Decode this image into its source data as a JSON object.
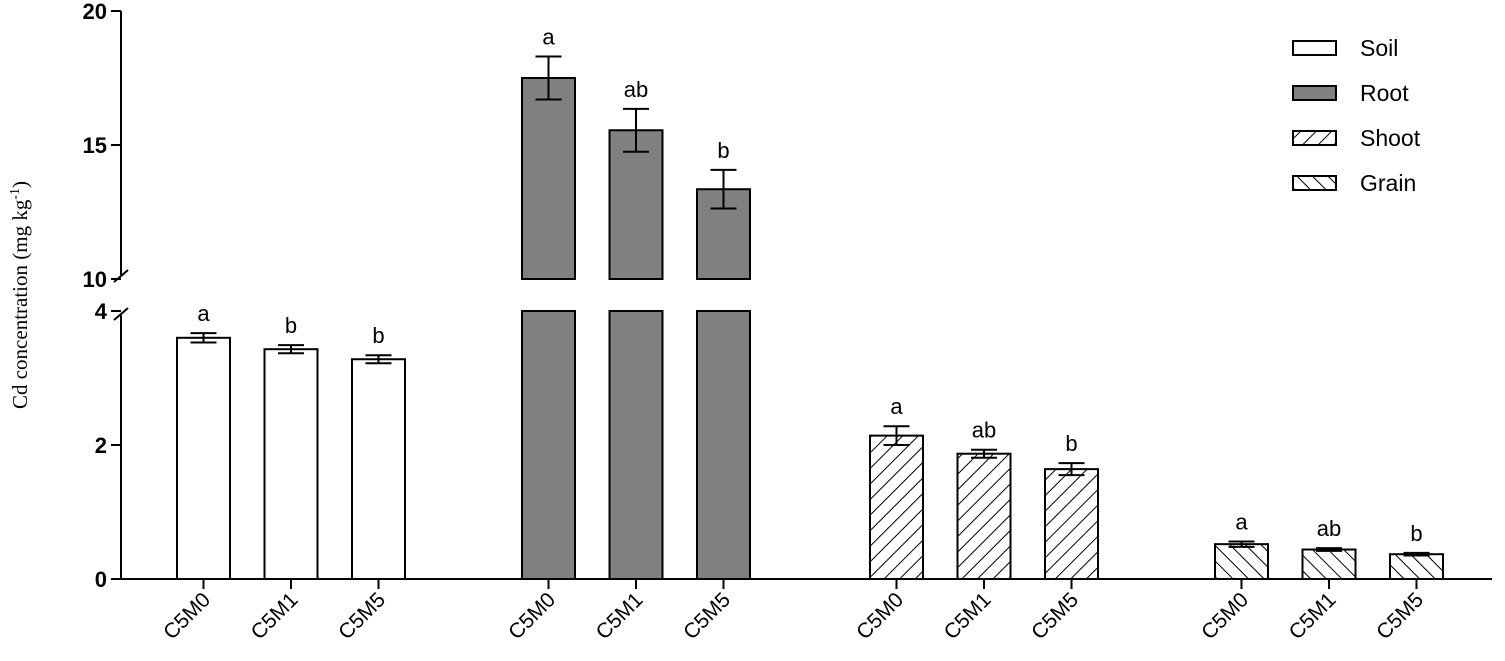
{
  "chart_data": {
    "type": "bar",
    "ylabel_main": "Cd concentration (mg kg",
    "ylabel_sup": "-1",
    "ylabel_close": ")",
    "y_axis": {
      "broken": true,
      "lower_range": [
        0,
        4
      ],
      "upper_range": [
        10,
        20
      ],
      "lower_ticks": [
        "0",
        "2",
        "4"
      ],
      "upper_ticks": [
        "10",
        "15",
        "20"
      ]
    },
    "legend": {
      "position": "top-right",
      "entries": [
        {
          "name": "Soil",
          "fill": "white"
        },
        {
          "name": "Root",
          "fill": "gray"
        },
        {
          "name": "Shoot",
          "fill": "hatch-forward"
        },
        {
          "name": "Grain",
          "fill": "hatch-back"
        }
      ]
    },
    "groups": [
      {
        "series": "Soil",
        "categories": [
          "C5M0",
          "C5M1",
          "C5M5"
        ],
        "values": [
          3.6,
          3.43,
          3.28
        ],
        "errors": [
          0.07,
          0.06,
          0.06
        ],
        "letters": [
          "a",
          "b",
          "b"
        ]
      },
      {
        "series": "Root",
        "categories": [
          "C5M0",
          "C5M1",
          "C5M5"
        ],
        "values": [
          17.5,
          15.55,
          13.35
        ],
        "errors": [
          0.8,
          0.8,
          0.72
        ],
        "letters": [
          "a",
          "ab",
          "b"
        ]
      },
      {
        "series": "Shoot",
        "categories": [
          "C5M0",
          "C5M1",
          "C5M5"
        ],
        "values": [
          2.14,
          1.87,
          1.64
        ],
        "errors": [
          0.14,
          0.06,
          0.09
        ],
        "letters": [
          "a",
          "ab",
          "b"
        ]
      },
      {
        "series": "Grain",
        "categories": [
          "C5M0",
          "C5M1",
          "C5M5"
        ],
        "values": [
          0.52,
          0.44,
          0.37
        ],
        "errors": [
          0.04,
          0.02,
          0.02
        ],
        "letters": [
          "a",
          "ab",
          "b"
        ]
      }
    ],
    "colors": {
      "root_fill": "#808080",
      "soil_fill": "#ffffff",
      "line": "#000000"
    }
  }
}
